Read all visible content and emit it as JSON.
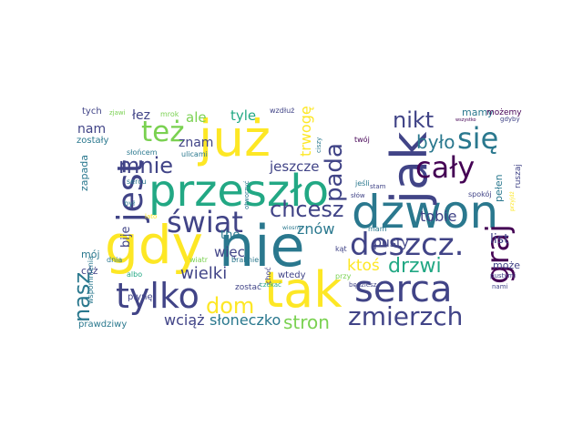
{
  "colors": {
    "c1": "#440154",
    "c2": "#414487",
    "c3": "#2a788e",
    "c4": "#22a884",
    "c5": "#7ad151",
    "c6": "#fde725"
  },
  "words": [
    {
      "id": "dzwon",
      "text": "dzwon"
    },
    {
      "id": "nie",
      "text": "nie"
    },
    {
      "id": "tak",
      "text": "tak"
    },
    {
      "id": "juz",
      "text": "już"
    },
    {
      "id": "przeszlo",
      "text": "przeszło"
    },
    {
      "id": "gdy",
      "text": "gdy"
    },
    {
      "id": "jak",
      "text": "jak"
    },
    {
      "id": "serca",
      "text": "serca"
    },
    {
      "id": "tylko",
      "text": "tylko"
    },
    {
      "id": "deszcz",
      "text": "deszcz."
    },
    {
      "id": "swiat",
      "text": "świat"
    },
    {
      "id": "jest",
      "text": "jest"
    },
    {
      "id": "zmierzch",
      "text": "zmierzch"
    },
    {
      "id": "graj",
      "text": "graj"
    },
    {
      "id": "caly",
      "text": "cały"
    },
    {
      "id": "sie",
      "text": "się"
    },
    {
      "id": "tez",
      "text": "też"
    },
    {
      "id": "mnie",
      "text": "mnie"
    },
    {
      "id": "nikt",
      "text": "nikt"
    },
    {
      "id": "chcesz",
      "text": "chcesz"
    },
    {
      "id": "pada",
      "text": "pada"
    },
    {
      "id": "dom",
      "text": "dom"
    },
    {
      "id": "nasz",
      "text": "nasz"
    },
    {
      "id": "bylo",
      "text": "było"
    },
    {
      "id": "drzwi",
      "text": "drzwi"
    },
    {
      "id": "stron",
      "text": "stron"
    },
    {
      "id": "wielki",
      "text": "wielki"
    },
    {
      "id": "sloneczko",
      "text": "słoneczko"
    },
    {
      "id": "wciaz",
      "text": "wciąż"
    },
    {
      "id": "jeszcze",
      "text": "jeszcze"
    },
    {
      "id": "ktos",
      "text": "ktoś"
    },
    {
      "id": "znow",
      "text": "znów"
    },
    {
      "id": "tobie",
      "text": "tobie"
    },
    {
      "id": "trwoge",
      "text": "trwogę"
    },
    {
      "id": "znam",
      "text": "znam"
    },
    {
      "id": "wiec",
      "text": "więc"
    },
    {
      "id": "ale",
      "text": "ale"
    },
    {
      "id": "tyle",
      "text": "tyle"
    },
    {
      "id": "list",
      "text": "list"
    },
    {
      "id": "pusty",
      "text": "pusty"
    },
    {
      "id": "nam",
      "text": "nam"
    },
    {
      "id": "lez",
      "text": "łez"
    },
    {
      "id": "bije",
      "text": "bije"
    },
    {
      "id": "the",
      "text": "the"
    },
    {
      "id": "mamy",
      "text": "mamy"
    },
    {
      "id": "pelen",
      "text": "pełen"
    },
    {
      "id": "moj",
      "text": "mój"
    },
    {
      "id": "moze",
      "text": "może"
    },
    {
      "id": "coz",
      "text": "cóż"
    },
    {
      "id": "zapada",
      "text": "zapada"
    },
    {
      "id": "zostaly",
      "text": "zostały"
    },
    {
      "id": "tych",
      "text": "tych"
    },
    {
      "id": "mozemy",
      "text": "możemy"
    },
    {
      "id": "ruszaj",
      "text": "ruszaj"
    },
    {
      "id": "wtedy",
      "text": "wtedy"
    },
    {
      "id": "plyne",
      "text": "płynę"
    },
    {
      "id": "prawdziwy",
      "text": "prawdziwy"
    },
    {
      "id": "zostac",
      "text": "zostać"
    },
    {
      "id": "wspomnienia",
      "text": "wspomnienia"
    },
    {
      "id": "spokoj",
      "text": "spokój"
    },
    {
      "id": "wzdluz",
      "text": "wzdłuż"
    },
    {
      "id": "slonecem",
      "text": "słońcem"
    },
    {
      "id": "ulicami",
      "text": "ulicami"
    },
    {
      "id": "sercu",
      "text": "sercu"
    },
    {
      "id": "byl",
      "text": "był"
    },
    {
      "id": "braknie",
      "text": "braknie"
    },
    {
      "id": "wiatr",
      "text": "wiatr"
    },
    {
      "id": "dnia",
      "text": "dnia"
    },
    {
      "id": "albo",
      "text": "albo"
    },
    {
      "id": "mrok",
      "text": "mrok"
    },
    {
      "id": "czekac",
      "text": "czekać"
    },
    {
      "id": "choc",
      "text": "choć"
    },
    {
      "id": "jesli",
      "text": "jeśli"
    },
    {
      "id": "twoj",
      "text": "twój"
    },
    {
      "id": "przy",
      "text": "przy"
    },
    {
      "id": "mam",
      "text": "mam"
    },
    {
      "id": "kat",
      "text": "kąt"
    },
    {
      "id": "bedziesz",
      "text": "będziesz"
    },
    {
      "id": "pustymi",
      "text": "pustymi"
    },
    {
      "id": "nami",
      "text": "nami"
    },
    {
      "id": "gdyby",
      "text": "gdyby"
    },
    {
      "id": "slow",
      "text": "słów"
    },
    {
      "id": "otworzyc",
      "text": "otworzyć"
    },
    {
      "id": "ciszy",
      "text": "ciszy"
    },
    {
      "id": "stam",
      "text": "stam"
    },
    {
      "id": "wszystko",
      "text": "wszystko"
    },
    {
      "id": "przyjdz",
      "text": "przyjdź"
    },
    {
      "id": "wiosny",
      "text": "wiosny"
    },
    {
      "id": "zjawi",
      "text": "zjawi"
    },
    {
      "id": "lato",
      "text": "lato"
    }
  ]
}
